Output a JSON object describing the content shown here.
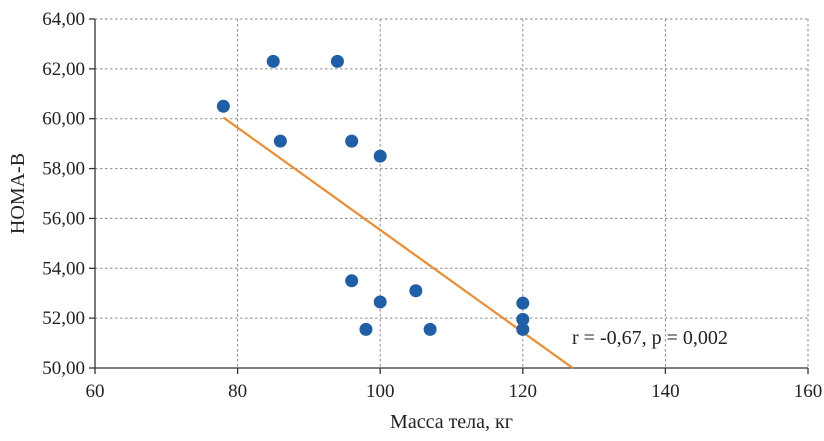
{
  "chart_data": {
    "type": "scatter",
    "xlabel": "Масса тела, кг",
    "ylabel": "HOMA-B",
    "xlim": [
      60,
      160
    ],
    "ylim": [
      50,
      64
    ],
    "x_ticks": [
      60,
      80,
      100,
      120,
      140,
      160
    ],
    "y_ticks": [
      50,
      52,
      54,
      56,
      58,
      60,
      62,
      64
    ],
    "x_tick_labels": [
      "60",
      "80",
      "100",
      "120",
      "140",
      "160"
    ],
    "y_tick_labels": [
      "50,00",
      "52,00",
      "54,00",
      "56,00",
      "58,00",
      "60,00",
      "62,00",
      "64,00"
    ],
    "grid": true,
    "points": [
      {
        "x": 78,
        "y": 60.5
      },
      {
        "x": 85,
        "y": 62.3
      },
      {
        "x": 94,
        "y": 62.3
      },
      {
        "x": 86,
        "y": 59.1
      },
      {
        "x": 96,
        "y": 59.1
      },
      {
        "x": 100,
        "y": 58.5
      },
      {
        "x": 96,
        "y": 53.5
      },
      {
        "x": 105,
        "y": 53.1
      },
      {
        "x": 100,
        "y": 52.65
      },
      {
        "x": 98,
        "y": 51.55
      },
      {
        "x": 107,
        "y": 51.55
      },
      {
        "x": 120,
        "y": 52.6
      },
      {
        "x": 120,
        "y": 51.95
      },
      {
        "x": 120,
        "y": 51.55
      }
    ],
    "trendline": {
      "x_start": 78,
      "y_start": 60.05,
      "x_end": 127,
      "y_end": 50
    },
    "annotation": "r = -0,67, p = 0,002",
    "colors": {
      "points": "#1f5fa8",
      "trendline": "#f28a2e"
    }
  }
}
